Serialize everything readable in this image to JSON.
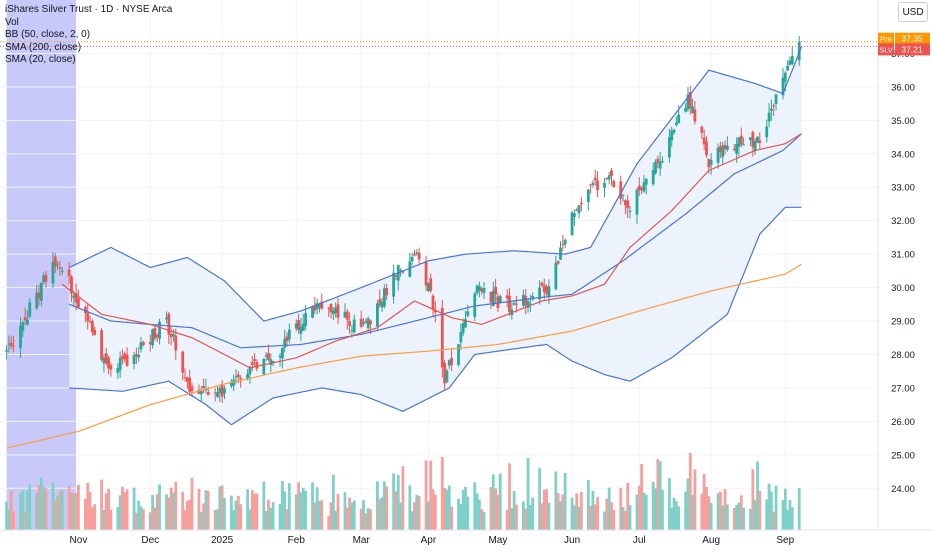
{
  "legend": {
    "title": "iShares Silver Trust · 1D · NYSE Arca",
    "indicators": [
      "Vol",
      "BB (50, close, 2, 0)",
      "SMA (200, close)",
      "SMA (20, close)"
    ]
  },
  "currency_button": "USD",
  "colors": {
    "up": "#26a69a",
    "down": "#ef5350",
    "up_vol": "#7fd1c8",
    "down_vol": "#f6a09d",
    "bb_band": "#4a74d9",
    "bb_fill": "#e9f1fb",
    "sma200": "#ff9a3d",
    "sma20": "#e5534b",
    "highlight": "#9a9cf2",
    "pre_label": "#ff9800",
    "last_label": "#ef5350"
  },
  "chart_data": {
    "type": "candlestick",
    "y_ticks": [
      "24.00",
      "25.00",
      "26.00",
      "27.00",
      "28.00",
      "29.00",
      "30.00",
      "31.00",
      "32.00",
      "33.00",
      "34.00",
      "35.00",
      "36.00",
      "37.00"
    ],
    "ylim": [
      23.5,
      37.7
    ],
    "x_ticks": [
      {
        "label": "Nov",
        "date": "2024-11-01"
      },
      {
        "label": "Dec",
        "date": "2024-12-02"
      },
      {
        "label": "2025",
        "date": "2025-01-02"
      },
      {
        "label": "Feb",
        "date": "2025-02-03"
      },
      {
        "label": "Mar",
        "date": "2025-03-03"
      },
      {
        "label": "Apr",
        "date": "2025-04-01"
      },
      {
        "label": "May",
        "date": "2025-05-01"
      },
      {
        "label": "Jun",
        "date": "2025-06-02"
      },
      {
        "label": "Jul",
        "date": "2025-07-01"
      },
      {
        "label": "Aug",
        "date": "2025-08-01"
      },
      {
        "label": "Sep",
        "date": "2025-09-02"
      }
    ],
    "close_anchors": [
      [
        "2024-10-01",
        28.0
      ],
      [
        "2024-10-22",
        30.8
      ],
      [
        "2024-10-30",
        29.9
      ],
      [
        "2024-11-05",
        28.9
      ],
      [
        "2024-11-14",
        27.6
      ],
      [
        "2024-11-26",
        28.0
      ],
      [
        "2024-12-09",
        29.0
      ],
      [
        "2024-12-19",
        27.0
      ],
      [
        "2024-12-30",
        26.7
      ],
      [
        "2025-01-10",
        27.4
      ],
      [
        "2025-01-24",
        27.9
      ],
      [
        "2025-02-05",
        29.0
      ],
      [
        "2025-02-13",
        29.6
      ],
      [
        "2025-02-27",
        28.9
      ],
      [
        "2025-03-07",
        29.1
      ],
      [
        "2025-03-18",
        30.4
      ],
      [
        "2025-03-27",
        31.0
      ],
      [
        "2025-04-03",
        29.5
      ],
      [
        "2025-04-08",
        27.2
      ],
      [
        "2025-04-14",
        28.5
      ],
      [
        "2025-04-22",
        30.0
      ],
      [
        "2025-05-01",
        29.6
      ],
      [
        "2025-05-08",
        29.4
      ],
      [
        "2025-05-22",
        30.0
      ],
      [
        "2025-06-05",
        32.6
      ],
      [
        "2025-06-17",
        33.4
      ],
      [
        "2025-06-27",
        32.5
      ],
      [
        "2025-07-11",
        34.0
      ],
      [
        "2025-07-22",
        35.7
      ],
      [
        "2025-07-31",
        33.8
      ],
      [
        "2025-08-11",
        34.3
      ],
      [
        "2025-08-22",
        34.4
      ],
      [
        "2025-09-03",
        36.5
      ],
      [
        "2025-09-08",
        37.21
      ]
    ],
    "bb": {
      "upper": [
        [
          "2024-10-28",
          30.6
        ],
        [
          "2024-11-15",
          31.2
        ],
        [
          "2024-12-02",
          30.6
        ],
        [
          "2024-12-18",
          30.9
        ],
        [
          "2025-01-03",
          30.2
        ],
        [
          "2025-01-20",
          29.0
        ],
        [
          "2025-02-05",
          29.3
        ],
        [
          "2025-03-03",
          30.0
        ],
        [
          "2025-04-01",
          30.8
        ],
        [
          "2025-04-17",
          31.0
        ],
        [
          "2025-05-08",
          31.1
        ],
        [
          "2025-05-30",
          31.0
        ],
        [
          "2025-06-10",
          31.2
        ],
        [
          "2025-06-30",
          33.7
        ],
        [
          "2025-07-21",
          35.6
        ],
        [
          "2025-07-31",
          36.5
        ],
        [
          "2025-08-20",
          36.1
        ],
        [
          "2025-09-01",
          35.8
        ],
        [
          "2025-09-09",
          37.2
        ]
      ],
      "mid": [
        [
          "2024-10-28",
          29.5
        ],
        [
          "2024-11-15",
          29.0
        ],
        [
          "2024-12-02",
          28.9
        ],
        [
          "2024-12-20",
          28.8
        ],
        [
          "2025-01-10",
          28.2
        ],
        [
          "2025-02-05",
          28.3
        ],
        [
          "2025-03-03",
          28.6
        ],
        [
          "2025-04-01",
          29.1
        ],
        [
          "2025-04-21",
          29.45
        ],
        [
          "2025-05-19",
          29.7
        ],
        [
          "2025-06-02",
          29.8
        ],
        [
          "2025-06-24",
          30.8
        ],
        [
          "2025-07-21",
          32.2
        ],
        [
          "2025-08-11",
          33.4
        ],
        [
          "2025-09-01",
          34.1
        ],
        [
          "2025-09-09",
          34.6
        ]
      ],
      "lower": [
        [
          "2024-10-28",
          27.0
        ],
        [
          "2024-11-20",
          26.9
        ],
        [
          "2024-12-10",
          27.2
        ],
        [
          "2024-12-26",
          26.5
        ],
        [
          "2025-01-06",
          25.9
        ],
        [
          "2025-01-24",
          26.7
        ],
        [
          "2025-02-14",
          27.0
        ],
        [
          "2025-03-03",
          26.8
        ],
        [
          "2025-03-21",
          26.3
        ],
        [
          "2025-04-10",
          27.0
        ],
        [
          "2025-04-21",
          28.0
        ],
        [
          "2025-05-01",
          28.1
        ],
        [
          "2025-05-22",
          28.3
        ],
        [
          "2025-06-02",
          27.8
        ],
        [
          "2025-06-16",
          27.4
        ],
        [
          "2025-06-27",
          27.2
        ],
        [
          "2025-07-15",
          27.9
        ],
        [
          "2025-08-08",
          29.2
        ],
        [
          "2025-08-22",
          31.6
        ],
        [
          "2025-09-02",
          32.4
        ],
        [
          "2025-09-09",
          32.4
        ]
      ]
    },
    "sma200": [
      [
        "2024-10-01",
        25.2
      ],
      [
        "2024-11-01",
        25.7
      ],
      [
        "2024-12-02",
        26.5
      ],
      [
        "2025-01-02",
        27.1
      ],
      [
        "2025-02-03",
        27.6
      ],
      [
        "2025-03-03",
        27.95
      ],
      [
        "2025-04-01",
        28.1
      ],
      [
        "2025-05-01",
        28.3
      ],
      [
        "2025-06-02",
        28.7
      ],
      [
        "2025-07-01",
        29.3
      ],
      [
        "2025-08-01",
        29.9
      ],
      [
        "2025-09-02",
        30.4
      ],
      [
        "2025-09-09",
        30.7
      ]
    ],
    "sma20": [
      [
        "2024-10-25",
        30.1
      ],
      [
        "2024-11-11",
        29.2
      ],
      [
        "2024-12-02",
        28.9
      ],
      [
        "2024-12-20",
        28.5
      ],
      [
        "2025-01-03",
        28.0
      ],
      [
        "2025-01-14",
        27.6
      ],
      [
        "2025-02-03",
        27.9
      ],
      [
        "2025-02-20",
        28.4
      ],
      [
        "2025-03-10",
        28.8
      ],
      [
        "2025-03-26",
        29.6
      ],
      [
        "2025-04-11",
        29.1
      ],
      [
        "2025-04-24",
        28.9
      ],
      [
        "2025-05-20",
        29.6
      ],
      [
        "2025-06-02",
        29.75
      ],
      [
        "2025-06-16",
        30.1
      ],
      [
        "2025-06-27",
        31.2
      ],
      [
        "2025-07-15",
        32.3
      ],
      [
        "2025-07-31",
        33.5
      ],
      [
        "2025-08-20",
        34.1
      ],
      [
        "2025-09-02",
        34.3
      ],
      [
        "2025-09-09",
        34.6
      ]
    ],
    "horizontal_lines": [
      37.35,
      37.21
    ],
    "price_labels": [
      {
        "tag": "Pre",
        "value": "37.35"
      },
      {
        "tag": "SLV",
        "value": "37.21"
      }
    ],
    "highlight_range": [
      "2024-10-01",
      "2024-10-31"
    ]
  }
}
